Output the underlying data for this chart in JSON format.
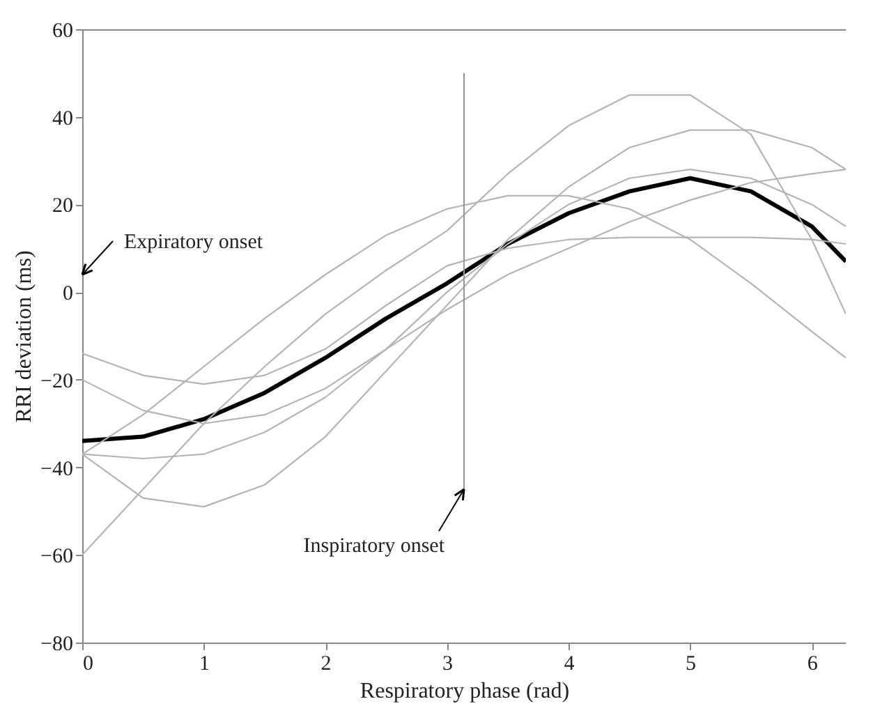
{
  "chart_data": {
    "type": "line",
    "xlabel": "Respiratory phase (rad)",
    "ylabel": "RRI deviation (ms)",
    "x": [
      0,
      0.5,
      1,
      1.5,
      2,
      2.5,
      3,
      3.5,
      4,
      4.5,
      5,
      5.5,
      6,
      6.28
    ],
    "xlim": [
      0,
      6.28
    ],
    "xticks": [
      0,
      1,
      2,
      3,
      4,
      5,
      6
    ],
    "ylim": [
      -80,
      60
    ],
    "yticks": [
      -80,
      -60,
      -40,
      -20,
      0,
      20,
      40,
      60
    ],
    "grid": false,
    "legend": false,
    "marker": "none",
    "line_style": "solid",
    "series": [
      {
        "color": "#000000",
        "values": [
          -34,
          -33,
          -29,
          -23,
          -15,
          -6,
          2,
          11,
          18,
          23,
          26,
          23,
          15,
          7
        ]
      },
      {
        "color": "#b4b4b4",
        "values": [
          -14,
          -19,
          -21,
          -19,
          -13,
          -3,
          6,
          10,
          12,
          12.5,
          12.5,
          12.5,
          12,
          11
        ]
      },
      {
        "color": "#b4b4b4",
        "values": [
          -37,
          -28,
          -17,
          -6,
          4,
          13,
          19,
          22,
          22,
          19,
          12,
          2,
          -9,
          -15
        ]
      },
      {
        "color": "#b4b4b4",
        "values": [
          -60,
          -45,
          -30,
          -17,
          -5,
          5,
          14,
          27,
          38,
          45,
          45,
          36,
          12,
          -5
        ]
      },
      {
        "color": "#b4b4b4",
        "values": [
          -37,
          -47,
          -49,
          -44,
          -33,
          -18,
          -3,
          12,
          24,
          33,
          37,
          37,
          33,
          28
        ]
      },
      {
        "color": "#b4b4b4",
        "values": [
          -37,
          -38,
          -37,
          -32,
          -24,
          -13,
          0,
          11,
          20,
          26,
          28,
          26,
          20,
          15
        ]
      },
      {
        "color": "#b4b4b4",
        "values": [
          -20,
          -27,
          -30,
          -28,
          -22,
          -13,
          -4,
          4,
          10,
          16,
          21,
          25,
          27,
          28
        ]
      },
      {
        "color": "#999999",
        "x": [
          3.14,
          3.14
        ],
        "values": [
          -45,
          50
        ]
      }
    ],
    "annotations": [
      "Expiratory onset",
      {
        "text": "Inspiratory onset",
        "x": 3.14,
        "y": -45
      }
    ]
  }
}
